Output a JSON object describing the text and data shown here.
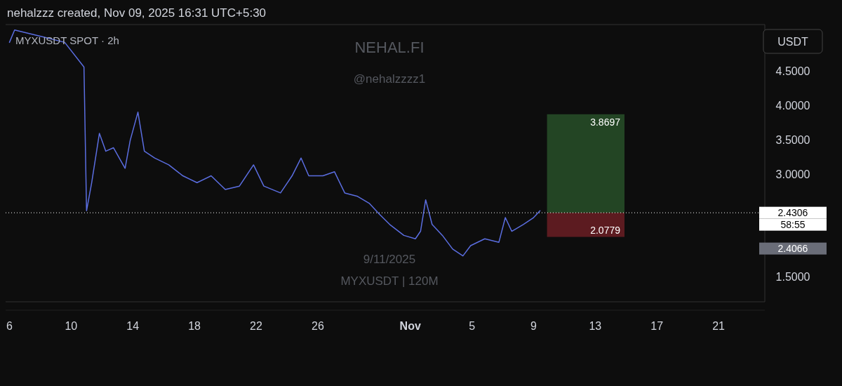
{
  "chart_data": {
    "type": "line",
    "title": "MYXUSDT SPOT · 2h",
    "subtitle": "nehalzzz created, Nov 09, 2025 16:31 UTC+5:30",
    "ylabel": "USDT",
    "x": [
      "2025-10-06T00:00",
      "2025-10-06T08:00",
      "2025-10-08T04:00",
      "2025-10-09T14:00",
      "2025-10-10T20:00",
      "2025-10-11T00:00",
      "2025-10-11T08:00",
      "2025-10-11T20:00",
      "2025-10-12T06:00",
      "2025-10-12T18:00",
      "2025-10-13T12:00",
      "2025-10-13T20:00",
      "2025-10-14T08:00",
      "2025-10-14T18:00",
      "2025-10-15T10:00",
      "2025-10-16T08:00",
      "2025-10-17T06:00",
      "2025-10-18T04:00",
      "2025-10-19T02:00",
      "2025-10-20T00:00",
      "2025-10-20T22:00",
      "2025-10-21T20:00",
      "2025-10-22T12:00",
      "2025-10-23T14:00",
      "2025-10-24T08:00",
      "2025-10-24T22:00",
      "2025-10-25T10:00",
      "2025-10-26T08:00",
      "2025-10-27T02:00",
      "2025-10-27T18:00",
      "2025-10-28T14:00",
      "2025-10-29T08:00",
      "2025-10-30T00:00",
      "2025-10-30T16:00",
      "2025-10-31T14:00",
      "2025-11-01T08:00",
      "2025-11-01T16:00",
      "2025-11-02T00:00",
      "2025-11-02T10:00",
      "2025-11-03T02:00",
      "2025-11-03T18:00",
      "2025-11-04T10:00",
      "2025-11-04T22:00",
      "2025-11-05T20:00",
      "2025-11-06T18:00",
      "2025-11-07T04:00",
      "2025-11-07T14:00",
      "2025-11-08T08:00",
      "2025-11-09T00:00",
      "2025-11-09T10:00"
    ],
    "series": [
      {
        "color": "#5b6ee1",
        "values": [
          4.92,
          5.1,
          5.0,
          4.92,
          4.56,
          2.46,
          2.87,
          3.59,
          3.33,
          3.38,
          3.08,
          3.49,
          3.9,
          3.33,
          3.23,
          3.13,
          2.97,
          2.87,
          2.97,
          2.77,
          2.82,
          3.13,
          2.82,
          2.72,
          2.97,
          3.23,
          2.97,
          2.97,
          3.03,
          2.72,
          2.67,
          2.57,
          2.41,
          2.26,
          2.1,
          2.05,
          2.16,
          2.62,
          2.26,
          2.1,
          1.9,
          1.8,
          1.95,
          2.05,
          2.0,
          2.36,
          2.16,
          2.26,
          2.36,
          2.46
        ]
      }
    ],
    "xlim": [
      "2025-10-05T18:00",
      "2025-11-24T00:00"
    ],
    "xticks": [
      {
        "value": "2025-10-06",
        "label": "6"
      },
      {
        "value": "2025-10-10",
        "label": "10"
      },
      {
        "value": "2025-10-14",
        "label": "14"
      },
      {
        "value": "2025-10-18",
        "label": "18"
      },
      {
        "value": "2025-10-22",
        "label": "22"
      },
      {
        "value": "2025-10-26",
        "label": "26"
      },
      {
        "value": "2025-11-01",
        "label": "Nov"
      },
      {
        "value": "2025-11-05",
        "label": "5"
      },
      {
        "value": "2025-11-09",
        "label": "9"
      },
      {
        "value": "2025-11-13",
        "label": "13"
      },
      {
        "value": "2025-11-17",
        "label": "17"
      },
      {
        "value": "2025-11-21",
        "label": "21"
      }
    ],
    "ylim": [
      1.13,
      5.18
    ],
    "yticks": [
      {
        "value": 1.5,
        "label": "1.5000"
      },
      {
        "value": 3,
        "label": "3.0000"
      },
      {
        "value": 3.5,
        "label": "3.5000"
      },
      {
        "value": 4,
        "label": "4.0000"
      },
      {
        "value": 4.5,
        "label": "4.5000"
      }
    ],
    "bands": [
      {
        "axis": "y",
        "from": 2.4306,
        "to": 3.8697,
        "label": "3.8697",
        "color": "#4caf50"
      },
      {
        "axis": "y",
        "from": 2.0779,
        "to": 2.4306,
        "label": "2.0779",
        "color": "#f23645"
      }
    ],
    "ref_lines": [
      {
        "axis": "y",
        "value": 2.4306,
        "label": "2.4306",
        "line_style": "dotted",
        "color": "#ffffff"
      }
    ],
    "annotations": [
      "58:55",
      "2.4066",
      "NEHAL.FI",
      "@nehalzzzz1",
      "9/11/2025",
      "MYXUSDT | 120M"
    ]
  }
}
